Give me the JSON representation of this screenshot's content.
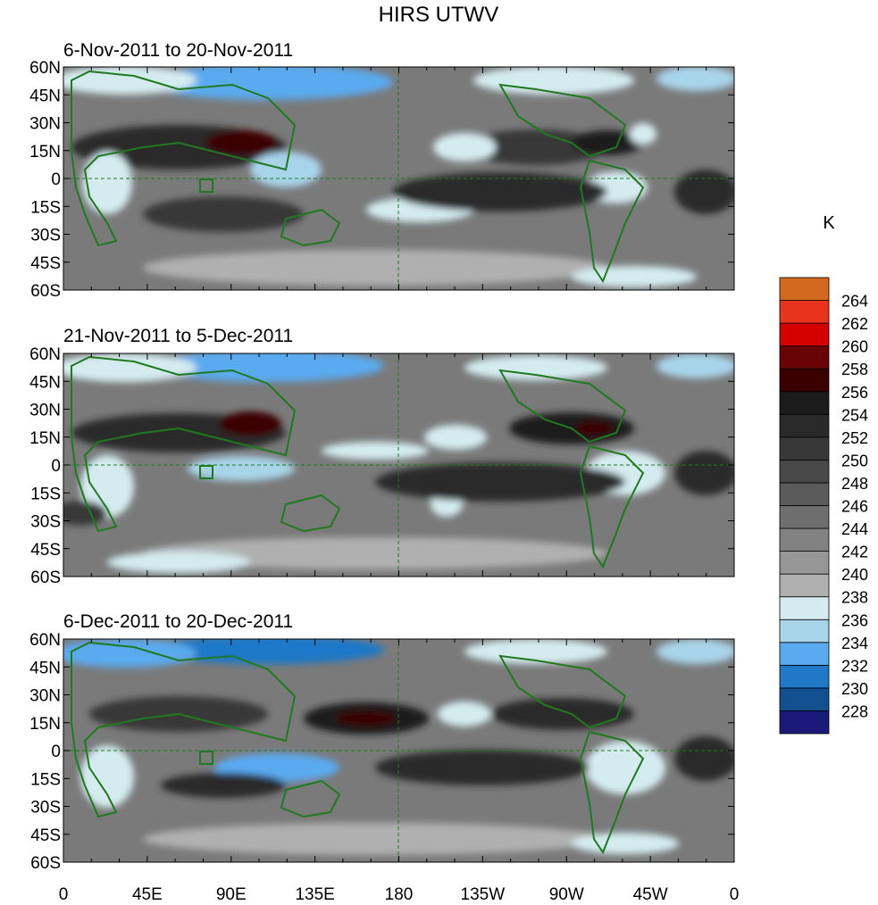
{
  "chart_data": {
    "type": "heatmap",
    "title": "HIRS UTWV",
    "units": "K",
    "x_tick_labels": [
      "0",
      "45E",
      "90E",
      "135E",
      "180",
      "135W",
      "90W",
      "45W",
      "0"
    ],
    "y_tick_labels": [
      "60N",
      "45N",
      "30N",
      "15N",
      "0",
      "15S",
      "30S",
      "45S",
      "60S"
    ],
    "lat_range": [
      -60,
      60
    ],
    "lon_range": [
      0,
      360
    ],
    "panels": [
      {
        "title": "6-Nov-2011 to 20-Nov-2011"
      },
      {
        "title": "21-Nov-2011 to 5-Dec-2011"
      },
      {
        "title": "6-Dec-2011 to 20-Dec-2011"
      }
    ],
    "colorbar": {
      "levels": [
        228,
        230,
        232,
        234,
        236,
        238,
        240,
        242,
        244,
        246,
        248,
        250,
        252,
        254,
        256,
        258,
        260,
        262,
        264
      ],
      "colors": [
        "#1a1a7a",
        "#12508f",
        "#1f78c8",
        "#5aaaf0",
        "#a8d4ea",
        "#d4ecf0",
        "#b0b0b0",
        "#969696",
        "#828282",
        "#6e6e6e",
        "#5a5a5a",
        "#484848",
        "#383838",
        "#2a2a2a",
        "#1c1c1c",
        "#3a0000",
        "#6a0404",
        "#d40000",
        "#e8341c",
        "#d2691e"
      ]
    }
  }
}
